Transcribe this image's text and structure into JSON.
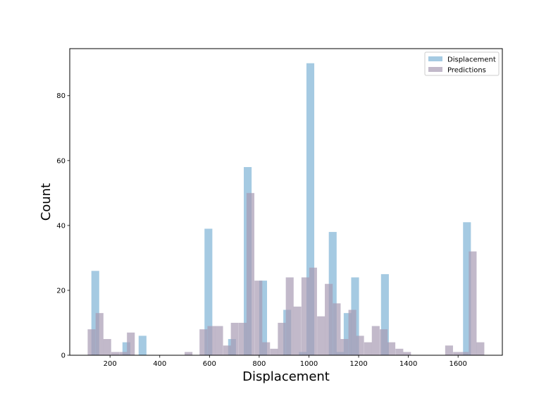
{
  "chart_data": {
    "type": "histogram",
    "xlabel": "Displacement",
    "ylabel": "Count",
    "xlim": [
      38,
      1778
    ],
    "ylim": [
      0,
      94.5
    ],
    "x_ticks": [
      200,
      400,
      600,
      800,
      1000,
      1200,
      1400,
      1600
    ],
    "y_ticks": [
      0,
      20,
      40,
      60,
      80
    ],
    "x_tick_labels": [
      "200",
      "400",
      "600",
      "800",
      "1000",
      "1200",
      "1400",
      "1600"
    ],
    "y_tick_labels": [
      "0",
      "20",
      "40",
      "60",
      "80"
    ],
    "grid": false,
    "legend_position": "upper right",
    "series": [
      {
        "name": "Displacement",
        "color": "#7fb3d5",
        "opacity": 0.7,
        "bin_width": 31.5,
        "bins": [
          {
            "x": 125,
            "count": 26
          },
          {
            "x": 250,
            "count": 4
          },
          {
            "x": 315,
            "count": 6
          },
          {
            "x": 580,
            "count": 39
          },
          {
            "x": 675,
            "count": 5
          },
          {
            "x": 738,
            "count": 58
          },
          {
            "x": 800,
            "count": 23
          },
          {
            "x": 897,
            "count": 14
          },
          {
            "x": 960,
            "count": 1
          },
          {
            "x": 990,
            "count": 90
          },
          {
            "x": 1080,
            "count": 38
          },
          {
            "x": 1110,
            "count": 1
          },
          {
            "x": 1140,
            "count": 13
          },
          {
            "x": 1170,
            "count": 24
          },
          {
            "x": 1290,
            "count": 25
          },
          {
            "x": 1620,
            "count": 41
          }
        ]
      },
      {
        "name": "Predictions",
        "color": "#a89bb3",
        "opacity": 0.7,
        "bin_width": 31.5,
        "bins": [
          {
            "x": 110,
            "count": 8
          },
          {
            "x": 142,
            "count": 13
          },
          {
            "x": 173,
            "count": 5
          },
          {
            "x": 205,
            "count": 1
          },
          {
            "x": 237,
            "count": 1
          },
          {
            "x": 268,
            "count": 7
          },
          {
            "x": 500,
            "count": 1
          },
          {
            "x": 560,
            "count": 8
          },
          {
            "x": 592,
            "count": 9
          },
          {
            "x": 623,
            "count": 9
          },
          {
            "x": 655,
            "count": 3
          },
          {
            "x": 686,
            "count": 10
          },
          {
            "x": 718,
            "count": 10
          },
          {
            "x": 749,
            "count": 50
          },
          {
            "x": 781,
            "count": 23
          },
          {
            "x": 812,
            "count": 4
          },
          {
            "x": 844,
            "count": 2
          },
          {
            "x": 875,
            "count": 10
          },
          {
            "x": 907,
            "count": 24
          },
          {
            "x": 938,
            "count": 15
          },
          {
            "x": 970,
            "count": 24
          },
          {
            "x": 1001,
            "count": 27
          },
          {
            "x": 1033,
            "count": 12
          },
          {
            "x": 1064,
            "count": 22
          },
          {
            "x": 1096,
            "count": 16
          },
          {
            "x": 1127,
            "count": 5
          },
          {
            "x": 1159,
            "count": 14
          },
          {
            "x": 1190,
            "count": 6
          },
          {
            "x": 1222,
            "count": 4
          },
          {
            "x": 1253,
            "count": 9
          },
          {
            "x": 1285,
            "count": 8
          },
          {
            "x": 1316,
            "count": 4
          },
          {
            "x": 1348,
            "count": 2
          },
          {
            "x": 1379,
            "count": 1
          },
          {
            "x": 1548,
            "count": 3
          },
          {
            "x": 1580,
            "count": 1
          },
          {
            "x": 1611,
            "count": 1
          },
          {
            "x": 1643,
            "count": 32
          },
          {
            "x": 1674,
            "count": 4
          }
        ]
      }
    ]
  }
}
